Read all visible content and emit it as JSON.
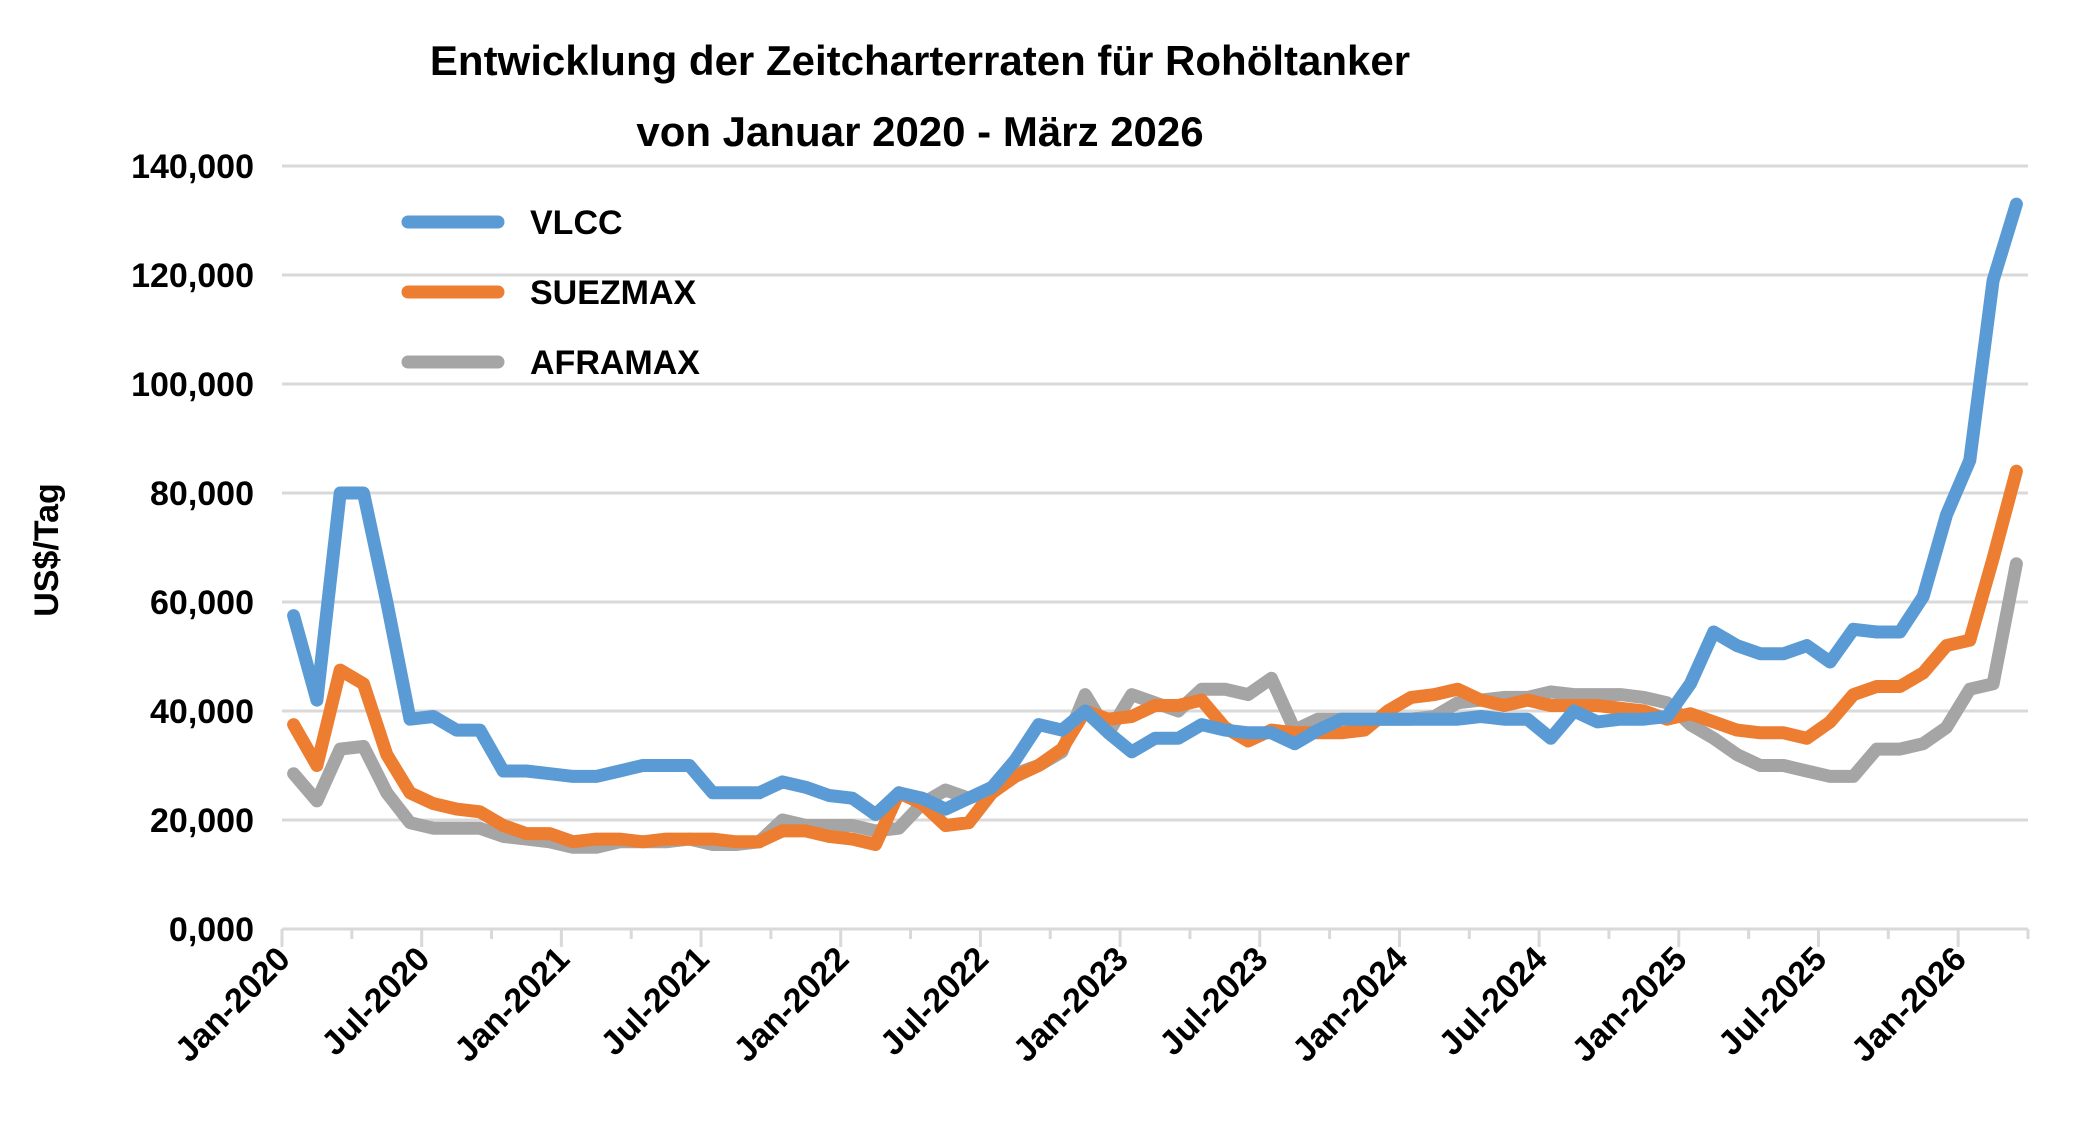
{
  "chart_data": {
    "type": "line",
    "title": [
      "Entwicklung der Zeitcharterraten für Rohöltanker",
      "von Januar 2020 - März  2026"
    ],
    "xlabel": "",
    "ylabel": "US$/Tag",
    "ylim": [
      0,
      140000
    ],
    "yticks": [
      0,
      20000,
      40000,
      60000,
      80000,
      100000,
      120000,
      140000
    ],
    "ytick_labels": [
      "0,000",
      "20,000",
      "40,000",
      "60,000",
      "80,000",
      "100,000",
      "120,000",
      "140,000"
    ],
    "x_start": "Jan-2020",
    "x_end": "Mar-2026",
    "x_frequency": "monthly",
    "xtick_labels": [
      "Jan-2020",
      "Jul-2020",
      "Jan-2021",
      "Jul-2021",
      "Jan-2022",
      "Jul-2022",
      "Jan-2023",
      "Jul-2023",
      "Jan-2024",
      "Jul-2024",
      "Jan-2025",
      "Jul-2025",
      "Jan-2026"
    ],
    "grid": true,
    "legend_position": "top-left",
    "series": [
      {
        "name": "VLCC",
        "color": "#5B9BD5",
        "values": [
          57500,
          42000,
          80000,
          80000,
          60000,
          38500,
          39000,
          36500,
          36500,
          29000,
          29000,
          28500,
          28000,
          28000,
          29000,
          30000,
          30000,
          30000,
          25000,
          25000,
          25000,
          27000,
          26000,
          24500,
          24000,
          21000,
          25000,
          24000,
          22000,
          24000,
          26000,
          31000,
          37500,
          36500,
          40000,
          36000,
          32500,
          35000,
          35000,
          37500,
          36500,
          36000,
          36000,
          34000,
          36500,
          38500,
          38500,
          38500,
          38500,
          38500,
          38500,
          39000,
          38500,
          38500,
          35000,
          40000,
          38000,
          38500,
          38500,
          39000,
          45000,
          54500,
          52000,
          50500,
          50500,
          52000,
          49000,
          55000,
          54500,
          54500,
          61000,
          76000,
          86000,
          119000,
          133000
        ]
      },
      {
        "name": "SUEZMAX",
        "color": "#ED7D31",
        "values": [
          37500,
          30000,
          47500,
          45000,
          32000,
          25000,
          23000,
          22000,
          21500,
          19000,
          17500,
          17500,
          16000,
          16500,
          16500,
          16000,
          16500,
          16500,
          16500,
          16000,
          16000,
          18000,
          18000,
          17000,
          16500,
          15500,
          25000,
          23000,
          19000,
          19500,
          25000,
          28000,
          30000,
          33000,
          40000,
          38500,
          39000,
          41000,
          41000,
          42000,
          37000,
          34500,
          36500,
          36000,
          36000,
          36000,
          36500,
          40000,
          42500,
          43000,
          44000,
          42000,
          41000,
          42000,
          41000,
          41000,
          41000,
          40500,
          40000,
          38500,
          39500,
          38000,
          36500,
          36000,
          36000,
          35000,
          38000,
          43000,
          44500,
          44500,
          47000,
          52000,
          53000,
          68000,
          84000
        ]
      },
      {
        "name": "AFRAMAX",
        "color": "#A5A5A5",
        "values": [
          28500,
          23500,
          33000,
          33500,
          25000,
          19500,
          18500,
          18500,
          18500,
          17000,
          16500,
          16000,
          15000,
          15000,
          16000,
          16000,
          16000,
          16500,
          15500,
          15500,
          16000,
          20000,
          19000,
          19000,
          19000,
          18000,
          18500,
          23000,
          25500,
          24000,
          25500,
          28500,
          30000,
          32500,
          43000,
          36000,
          43000,
          41500,
          40000,
          44000,
          44000,
          43000,
          46000,
          36500,
          38500,
          38500,
          38500,
          38500,
          38500,
          39000,
          41500,
          42000,
          42500,
          42500,
          43500,
          43000,
          43000,
          43000,
          42500,
          41500,
          37500,
          35000,
          32000,
          30000,
          30000,
          29000,
          28000,
          28000,
          33000,
          33000,
          34000,
          37000,
          44000,
          45000,
          67000
        ]
      }
    ]
  }
}
